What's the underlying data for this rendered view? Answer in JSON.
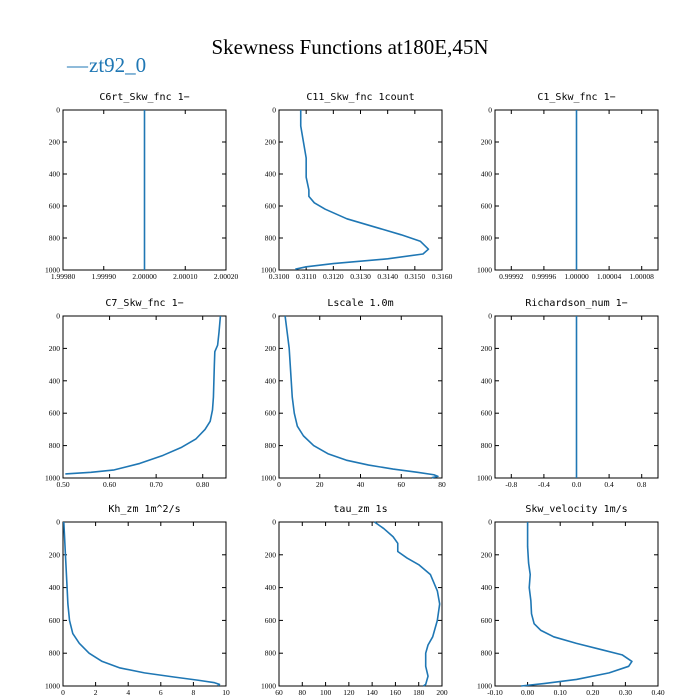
{
  "figure": {
    "title": "Skewness Functions at180E,45N",
    "legend": [
      {
        "label": "zt92_0",
        "symbol": "—",
        "color": "#1f77b4"
      }
    ]
  },
  "chart_data": [
    {
      "type": "line",
      "title": "C6rt_Skw_fnc  1−",
      "xlim": [
        1.9998,
        2.0002
      ],
      "ylim": [
        1000,
        0
      ],
      "xticks": [
        1.9998,
        1.9999,
        2.0,
        2.0001,
        2.0002
      ],
      "xtick_labels": [
        "1.99980",
        "1.99990",
        "2.00000",
        "2.00010",
        "2.00020"
      ],
      "yticks": [
        0,
        200,
        400,
        600,
        800,
        1000
      ],
      "series": [
        {
          "name": "zt92_0",
          "x": [
            2.0,
            2.0
          ],
          "y": [
            0,
            1000
          ]
        }
      ]
    },
    {
      "type": "line",
      "title": "C11_Skw_fnc  1count",
      "xlim": [
        0.31,
        0.316
      ],
      "ylim": [
        1000,
        0
      ],
      "xticks": [
        0.31,
        0.311,
        0.312,
        0.313,
        0.314,
        0.315,
        0.316
      ],
      "xtick_labels": [
        "0.3100",
        "0.3110",
        "0.3120",
        "0.3130",
        "0.3140",
        "0.3150",
        "0.3160"
      ],
      "yticks": [
        0,
        200,
        400,
        600,
        800,
        1000
      ],
      "series": [
        {
          "name": "zt92_0",
          "x": [
            0.3108,
            0.3108,
            0.3109,
            0.311,
            0.311,
            0.3111,
            0.3111,
            0.3113,
            0.3117,
            0.3125,
            0.3135,
            0.3145,
            0.3152,
            0.3155,
            0.3153,
            0.314,
            0.312,
            0.311,
            0.3106
          ],
          "y": [
            0,
            100,
            200,
            300,
            420,
            500,
            540,
            580,
            620,
            680,
            730,
            780,
            820,
            870,
            900,
            930,
            960,
            980,
            995
          ]
        }
      ]
    },
    {
      "type": "line",
      "title": "C1_Skw_fnc  1−",
      "xlim": [
        0.9999,
        1.0001
      ],
      "ylim": [
        1000,
        0
      ],
      "xticks": [
        0.99992,
        0.99996,
        1.0,
        1.00004,
        1.00008
      ],
      "xtick_labels": [
        "0.99992",
        "0.99996",
        "1.00000",
        "1.00004",
        "1.00008"
      ],
      "yticks": [
        0,
        200,
        400,
        600,
        800,
        1000
      ],
      "series": [
        {
          "name": "zt92_0",
          "x": [
            1.0,
            1.0
          ],
          "y": [
            0,
            1000
          ]
        }
      ]
    },
    {
      "type": "line",
      "title": "C7_Skw_fnc  1−",
      "xlim": [
        0.5,
        0.85
      ],
      "ylim": [
        1000,
        0
      ],
      "xticks": [
        0.5,
        0.6,
        0.7,
        0.8
      ],
      "xtick_labels": [
        "0.50",
        "0.60",
        "0.70",
        "0.80"
      ],
      "yticks": [
        0,
        200,
        400,
        600,
        800,
        1000
      ],
      "series": [
        {
          "name": "zt92_0",
          "x": [
            0.838,
            0.835,
            0.832,
            0.826,
            0.825,
            0.824,
            0.823,
            0.821,
            0.816,
            0.805,
            0.785,
            0.755,
            0.715,
            0.665,
            0.61,
            0.56,
            0.505
          ],
          "y": [
            0,
            100,
            180,
            220,
            300,
            400,
            500,
            580,
            650,
            700,
            760,
            810,
            860,
            910,
            950,
            965,
            975
          ]
        }
      ]
    },
    {
      "type": "line",
      "title": "Lscale  1.0m",
      "xlim": [
        0,
        80
      ],
      "ylim": [
        1000,
        0
      ],
      "xticks": [
        0,
        20,
        40,
        60,
        80
      ],
      "xtick_labels": [
        "0",
        "20",
        "40",
        "60",
        "80"
      ],
      "yticks": [
        0,
        200,
        400,
        600,
        800,
        1000
      ],
      "series": [
        {
          "name": "zt92_0",
          "x": [
            3,
            4,
            5,
            5.5,
            6,
            6.5,
            7.5,
            9,
            12,
            17,
            24,
            33,
            44,
            56,
            68,
            76,
            78,
            75
          ],
          "y": [
            0,
            100,
            200,
            300,
            400,
            500,
            600,
            680,
            740,
            800,
            850,
            890,
            920,
            945,
            965,
            980,
            990,
            998
          ]
        }
      ]
    },
    {
      "type": "line",
      "title": "Richardson_num  1−",
      "xlim": [
        -1,
        1
      ],
      "ylim": [
        1000,
        0
      ],
      "xticks": [
        -0.8,
        -0.4,
        0.0,
        0.4,
        0.8
      ],
      "xtick_labels": [
        "-0.8",
        "-0.4",
        "0.0",
        "0.4",
        "0.8"
      ],
      "yticks": [
        0,
        200,
        400,
        600,
        800,
        1000
      ],
      "series": [
        {
          "name": "zt92_0",
          "x": [
            0.0,
            0.0
          ],
          "y": [
            0,
            1000
          ]
        }
      ]
    },
    {
      "type": "line",
      "title": "Kh_zm  1m^2/s",
      "xlim": [
        0,
        10
      ],
      "ylim": [
        1000,
        0
      ],
      "xticks": [
        0,
        2,
        4,
        6,
        8,
        10
      ],
      "xtick_labels": [
        "0",
        "2",
        "4",
        "6",
        "8",
        "10"
      ],
      "yticks": [
        0,
        200,
        400,
        600,
        800,
        1000
      ],
      "series": [
        {
          "name": "zt92_0",
          "x": [
            0.05,
            0.1,
            0.15,
            0.2,
            0.25,
            0.3,
            0.4,
            0.6,
            1.0,
            1.6,
            2.4,
            3.5,
            5.0,
            6.8,
            8.3,
            9.3,
            9.6,
            9.5
          ],
          "y": [
            0,
            100,
            200,
            300,
            400,
            500,
            600,
            680,
            740,
            800,
            850,
            890,
            920,
            945,
            965,
            980,
            990,
            998
          ]
        }
      ]
    },
    {
      "type": "line",
      "title": "tau_zm  1s",
      "xlim": [
        60,
        200
      ],
      "ylim": [
        1000,
        0
      ],
      "xticks": [
        60,
        80,
        100,
        120,
        140,
        160,
        180,
        200
      ],
      "xtick_labels": [
        "60",
        "80",
        "100",
        "120",
        "140",
        "160",
        "180",
        "200"
      ],
      "yticks": [
        0,
        200,
        400,
        600,
        800,
        1000
      ],
      "series": [
        {
          "name": "zt92_0",
          "x": [
            142,
            150,
            158,
            162,
            162,
            170,
            180,
            190,
            196,
            198,
            196,
            192,
            188,
            186,
            186,
            188,
            186,
            184
          ],
          "y": [
            0,
            40,
            90,
            130,
            180,
            220,
            260,
            320,
            420,
            500,
            600,
            700,
            750,
            800,
            880,
            940,
            990,
            1000
          ]
        }
      ]
    },
    {
      "type": "line",
      "title": "Skw_velocity  1m/s",
      "xlim": [
        -0.1,
        0.4
      ],
      "ylim": [
        1000,
        0
      ],
      "xticks": [
        -0.1,
        0.0,
        0.1,
        0.2,
        0.3,
        0.4
      ],
      "xtick_labels": [
        "-0.10",
        "0.00",
        "0.10",
        "0.20",
        "0.30",
        "0.40"
      ],
      "yticks": [
        0,
        200,
        400,
        600,
        800,
        1000
      ],
      "series": [
        {
          "name": "zt92_0",
          "x": [
            0.0,
            0.0,
            0.003,
            0.008,
            0.005,
            0.01,
            0.012,
            0.02,
            0.04,
            0.08,
            0.15,
            0.23,
            0.29,
            0.32,
            0.31,
            0.25,
            0.15,
            0.05,
            -0.02
          ],
          "y": [
            0,
            150,
            250,
            320,
            400,
            480,
            560,
            620,
            660,
            700,
            740,
            780,
            810,
            850,
            880,
            920,
            960,
            985,
            1000
          ]
        }
      ]
    }
  ]
}
